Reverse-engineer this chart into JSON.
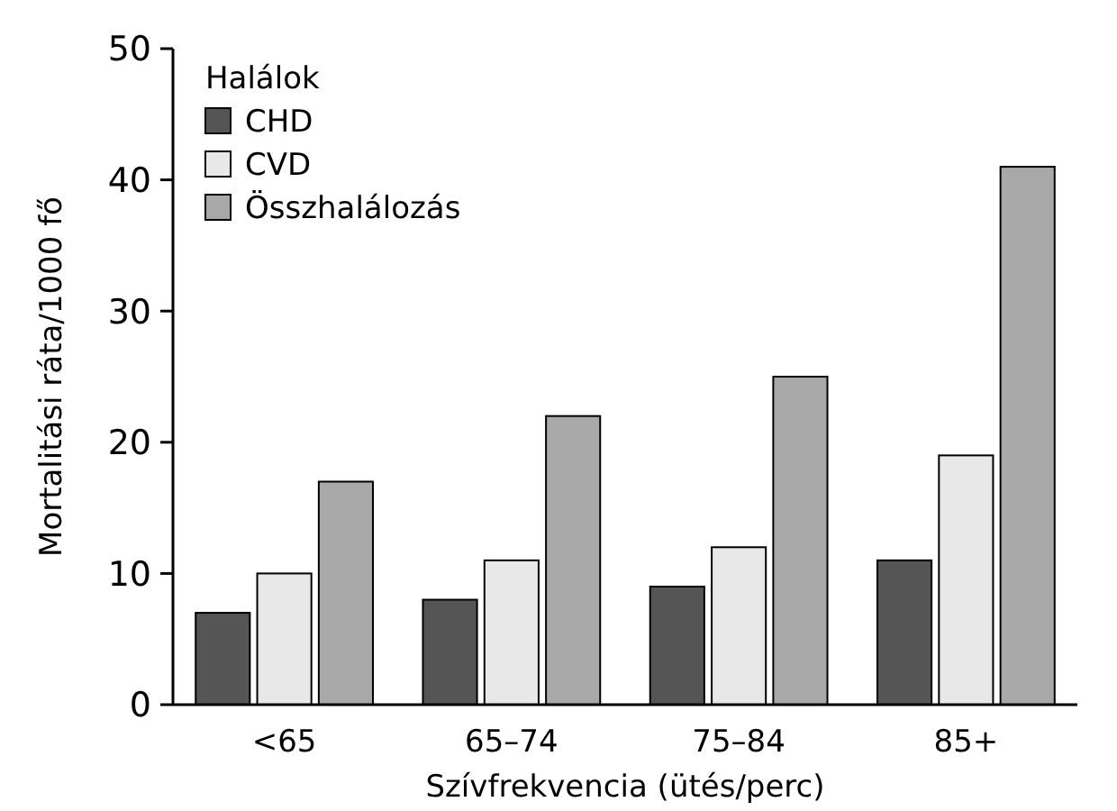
{
  "chart_data": {
    "type": "bar",
    "xlabel": "Szívfrekvencia (ütés/perc)",
    "ylabel": "Mortalitási ráta/1000 fő",
    "legend_title": "Halálok",
    "categories": [
      "<65",
      "65–74",
      "75–84",
      "85+"
    ],
    "series": [
      {
        "name": "CHD",
        "color": "#555555",
        "values": [
          7,
          8,
          9,
          11
        ]
      },
      {
        "name": "CVD",
        "color": "#e8e8e8",
        "values": [
          10,
          11,
          12,
          19
        ]
      },
      {
        "name": "Összhalálozás",
        "color": "#a8a8a8",
        "values": [
          17,
          22,
          25,
          41
        ]
      }
    ],
    "ylim": [
      0,
      50
    ],
    "yticks": [
      0,
      10,
      20,
      30,
      40,
      50
    ],
    "legend": "top left"
  }
}
